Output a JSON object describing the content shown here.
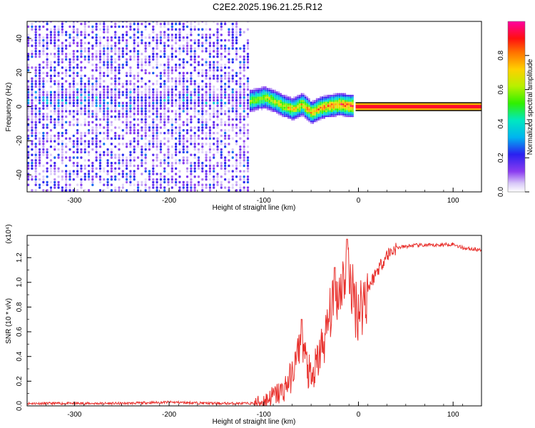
{
  "title": "C2E2.2025.196.21.25.R12",
  "chart_data": [
    {
      "type": "heatmap",
      "xlabel": "Height of straight line (km)",
      "ylabel": "Frequency (Hz)",
      "xlim": [
        -350,
        130
      ],
      "ylim": [
        -50,
        50
      ],
      "x_ticks": [
        "-300",
        "-200",
        "-100",
        "0",
        "100"
      ],
      "y_ticks": [
        "-40",
        "-20",
        "0",
        "20",
        "40"
      ],
      "colorbar": {
        "label": "Normalized spectral amplitude",
        "range": [
          0,
          1
        ],
        "ticks": [
          "0.0",
          "0.2",
          "0.4",
          "0.6",
          "0.8"
        ]
      },
      "regions": [
        {
          "name": "noise",
          "x": [
            -350,
            -115
          ],
          "freq": [
            -50,
            50
          ],
          "amplitude": [
            0.0,
            0.25
          ]
        },
        {
          "name": "transition",
          "x": [
            -115,
            -5
          ],
          "freq": [
            -10,
            8
          ],
          "amplitude": [
            0.1,
            0.9
          ]
        },
        {
          "name": "signal",
          "x": [
            0,
            130
          ],
          "freq": [
            -1,
            1
          ],
          "amplitude": [
            0.95,
            1.0
          ]
        }
      ],
      "centerline": [
        [
          -115,
          3
        ],
        [
          -100,
          5
        ],
        [
          -90,
          3
        ],
        [
          -80,
          0
        ],
        [
          -70,
          -2
        ],
        [
          -60,
          1
        ],
        [
          -50,
          -4
        ],
        [
          -40,
          -1
        ],
        [
          -30,
          0
        ],
        [
          -20,
          1
        ],
        [
          -10,
          0
        ],
        [
          0,
          0
        ],
        [
          130,
          0
        ]
      ]
    },
    {
      "type": "line",
      "xlabel": "Height of straight line (km)",
      "ylabel": "SNR (10 * v/v)",
      "y_multiplier": "(x10⁴)",
      "xlim": [
        -350,
        130
      ],
      "ylim": [
        0,
        1.38
      ],
      "x_ticks": [
        "-300",
        "-200",
        "-100",
        "0",
        "100"
      ],
      "y_ticks": [
        "0.0",
        "0.2",
        "0.4",
        "0.6",
        "0.8",
        "1.0",
        "1.2"
      ],
      "series": [
        {
          "color": "#e8302c",
          "x": [
            -350,
            -300,
            -250,
            -200,
            -150,
            -110,
            -100,
            -90,
            -80,
            -70,
            -65,
            -60,
            -55,
            -50,
            -45,
            -40,
            -35,
            -30,
            -25,
            -20,
            -15,
            -10,
            -5,
            0,
            5,
            10,
            20,
            30,
            40,
            50,
            60,
            80,
            100,
            110,
            120,
            130
          ],
          "y": [
            0.02,
            0.02,
            0.02,
            0.03,
            0.02,
            0.02,
            0.04,
            0.08,
            0.12,
            0.25,
            0.4,
            0.55,
            0.35,
            0.18,
            0.3,
            0.45,
            0.55,
            0.75,
            0.85,
            0.95,
            1.05,
            1.1,
            0.85,
            0.78,
            0.85,
            0.95,
            1.1,
            1.22,
            1.28,
            1.29,
            1.3,
            1.3,
            1.31,
            1.28,
            1.27,
            1.26
          ],
          "peaks": [
            [
              -60,
              0.7
            ],
            [
              -25,
              1.12
            ],
            [
              -12,
              1.35
            ]
          ]
        }
      ]
    }
  ]
}
